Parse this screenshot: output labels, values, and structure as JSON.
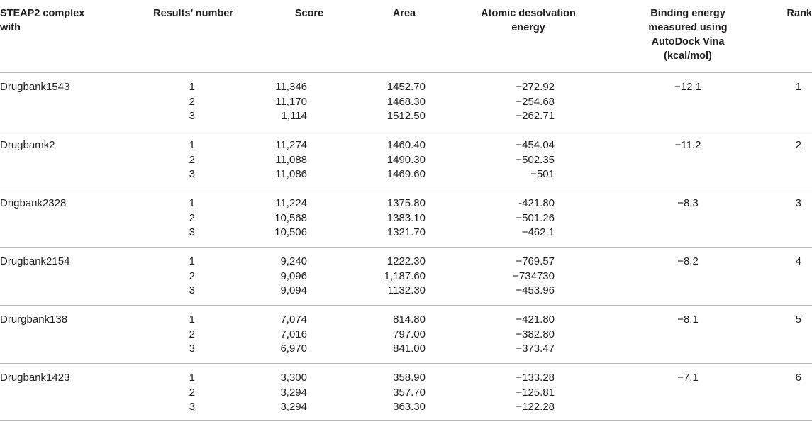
{
  "headers": {
    "complex": "STEAP2 complex with",
    "results_number": "Results’ number",
    "score": "Score",
    "area": "Area",
    "atomic_desolvation": "Atomic desolvation energy",
    "binding_energy": "Binding energy measured using AutoDock Vina (kcal/mol)",
    "rank": "Rank"
  },
  "groups": [
    {
      "name": "Drugbank1543",
      "results": [
        "1",
        "2",
        "3"
      ],
      "scores": [
        "11,346",
        "11,170",
        "1,114"
      ],
      "areas": [
        "1452.70",
        "1468.30",
        "1512.50"
      ],
      "desolvation": [
        "−272.92",
        "−254.68",
        "−262.71"
      ],
      "binding": "−12.1",
      "rank": "1"
    },
    {
      "name": "Drugbamk2",
      "results": [
        "1",
        "2",
        "3"
      ],
      "scores": [
        "11,274",
        "11,088",
        "11,086"
      ],
      "areas": [
        "1460.40",
        "1490.30",
        "1469.60"
      ],
      "desolvation": [
        "−454.04",
        "−502.35",
        "−501"
      ],
      "binding": "−11.2",
      "rank": "2"
    },
    {
      "name": "Drigbank2328",
      "results": [
        "1",
        "2",
        "3"
      ],
      "scores": [
        "11,224",
        "10,568",
        "10,506"
      ],
      "areas": [
        "1375.80",
        "1383.10",
        "1321.70"
      ],
      "desolvation": [
        "-421.80",
        "−501.26",
        "−462.1"
      ],
      "binding": "−8.3",
      "rank": "3"
    },
    {
      "name": "Drugbank2154",
      "results": [
        "1",
        "2",
        "3"
      ],
      "scores": [
        "9,240",
        "9,096",
        "9,094"
      ],
      "areas": [
        "1222.30",
        "1,187.60",
        "1132.30"
      ],
      "desolvation": [
        "−769.57",
        "−734730",
        "−453.96"
      ],
      "binding": "−8.2",
      "rank": "4"
    },
    {
      "name": "Drurgbank138",
      "results": [
        "1",
        "2",
        "3"
      ],
      "scores": [
        "7,074",
        "7,016",
        "6,970"
      ],
      "areas": [
        "814.80",
        "797.00",
        "841.00"
      ],
      "desolvation": [
        "−421.80",
        "−382.80",
        "−373.47"
      ],
      "binding": "−8.1",
      "rank": "5"
    },
    {
      "name": "Drugbank1423",
      "results": [
        "1",
        "2",
        "3"
      ],
      "scores": [
        "3,300",
        "3,294",
        "3,294"
      ],
      "areas": [
        "358.90",
        "357.70",
        "363.30"
      ],
      "desolvation": [
        "−133.28",
        "−125.81",
        "−122.28"
      ],
      "binding": "−7.1",
      "rank": "6"
    }
  ]
}
